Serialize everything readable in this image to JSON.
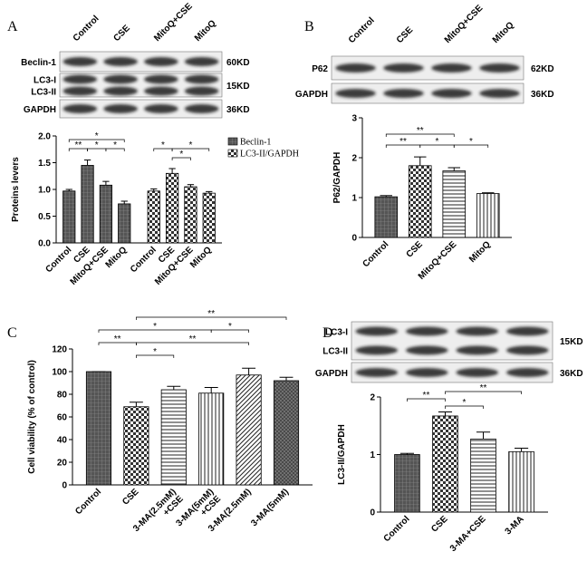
{
  "chart_data": [
    {
      "type": "bar",
      "panel": "A",
      "ylabel": "Proteins levers",
      "blot": {
        "lanes": [
          "Control",
          "CSE",
          "MitoQ+CSE",
          "MitoQ"
        ],
        "rows": [
          {
            "labels": [
              "Beclin-1"
            ],
            "size": "60KD"
          },
          {
            "labels": [
              "LC3-I",
              "LC3-II"
            ],
            "size": "15KD"
          },
          {
            "labels": [
              "GAPDH"
            ],
            "size": "36KD"
          }
        ]
      },
      "categories": [
        "Control",
        "CSE",
        "MitoQ+CSE",
        "MitoQ"
      ],
      "series": [
        {
          "name": "Beclin-1",
          "pattern": "grid",
          "values": [
            0.97,
            1.45,
            1.08,
            0.73
          ],
          "errors": [
            0.03,
            0.1,
            0.07,
            0.05
          ]
        },
        {
          "name": "LC3-II/GAPDH",
          "pattern": "check",
          "values": [
            0.97,
            1.3,
            1.05,
            0.93
          ],
          "errors": [
            0.04,
            0.09,
            0.04,
            0.03
          ]
        }
      ],
      "ylim": [
        0,
        2
      ],
      "yticks": [
        {
          "value": 0,
          "label": "0.0"
        },
        {
          "value": 0.5,
          "label": "0.5"
        },
        {
          "value": 1,
          "label": "1.0"
        },
        {
          "value": 1.5,
          "label": "1.5"
        },
        {
          "value": 2,
          "label": "2.0"
        }
      ],
      "significance": [
        "*",
        "**",
        "*",
        "*",
        "*",
        "*",
        "*"
      ]
    },
    {
      "type": "bar",
      "panel": "B",
      "ylabel": "P62/GAPDH",
      "blot": {
        "lanes": [
          "Control",
          "CSE",
          "MitoQ+CSE",
          "MitoQ"
        ],
        "rows": [
          {
            "labels": [
              "P62"
            ],
            "size": "62KD"
          },
          {
            "labels": [
              "GAPDH"
            ],
            "size": "36KD"
          }
        ]
      },
      "categories": [
        "Control",
        "CSE",
        "MitoQ+CSE",
        "MitoQ"
      ],
      "patterns": [
        "grid",
        "check",
        "hlines",
        "vlines"
      ],
      "values": [
        1.02,
        1.8,
        1.67,
        1.1
      ],
      "errors": [
        0.03,
        0.22,
        0.08,
        0.02
      ],
      "ylim": [
        0,
        3
      ],
      "yticks": [
        0,
        1,
        2,
        3
      ],
      "significance": [
        "**",
        "**",
        "*",
        "*"
      ]
    },
    {
      "type": "bar",
      "panel": "C",
      "ylabel": "Cell viability (% of control)",
      "categories": [
        "Control",
        "CSE",
        "3-MA(2.5mM)\n+CSE",
        "3-MA(5mM)\n+CSE",
        "3-MA(2.5mM)",
        "3-MA(5mM)"
      ],
      "patterns": [
        "grid",
        "check",
        "hlines",
        "vlines",
        "diag",
        "cross"
      ],
      "values": [
        100,
        69,
        84,
        81,
        97,
        92
      ],
      "errors": [
        0,
        4,
        3,
        5,
        6,
        3
      ],
      "ylim": [
        0,
        120
      ],
      "yticks": [
        0,
        20,
        40,
        60,
        80,
        100,
        120
      ],
      "significance": [
        "**",
        "*",
        "*",
        "**",
        "**",
        "*"
      ]
    },
    {
      "type": "bar",
      "panel": "D",
      "ylabel": "LC3-II/GAPDH",
      "blot": {
        "lanes": [],
        "rows": [
          {
            "labels": [
              "LC3-I",
              "LC3-II"
            ],
            "size": "15KD"
          },
          {
            "labels": [
              "GAPDH"
            ],
            "size": "36KD"
          }
        ]
      },
      "categories": [
        "Control",
        "CSE",
        "3-MA+CSE",
        "3-MA"
      ],
      "patterns": [
        "grid",
        "check",
        "hlines",
        "vlines"
      ],
      "values": [
        1.0,
        1.67,
        1.27,
        1.05
      ],
      "errors": [
        0.02,
        0.07,
        0.12,
        0.06
      ],
      "ylim": [
        0,
        2
      ],
      "yticks": [
        0,
        1,
        2
      ],
      "significance": [
        "**",
        "**",
        "*"
      ]
    }
  ]
}
